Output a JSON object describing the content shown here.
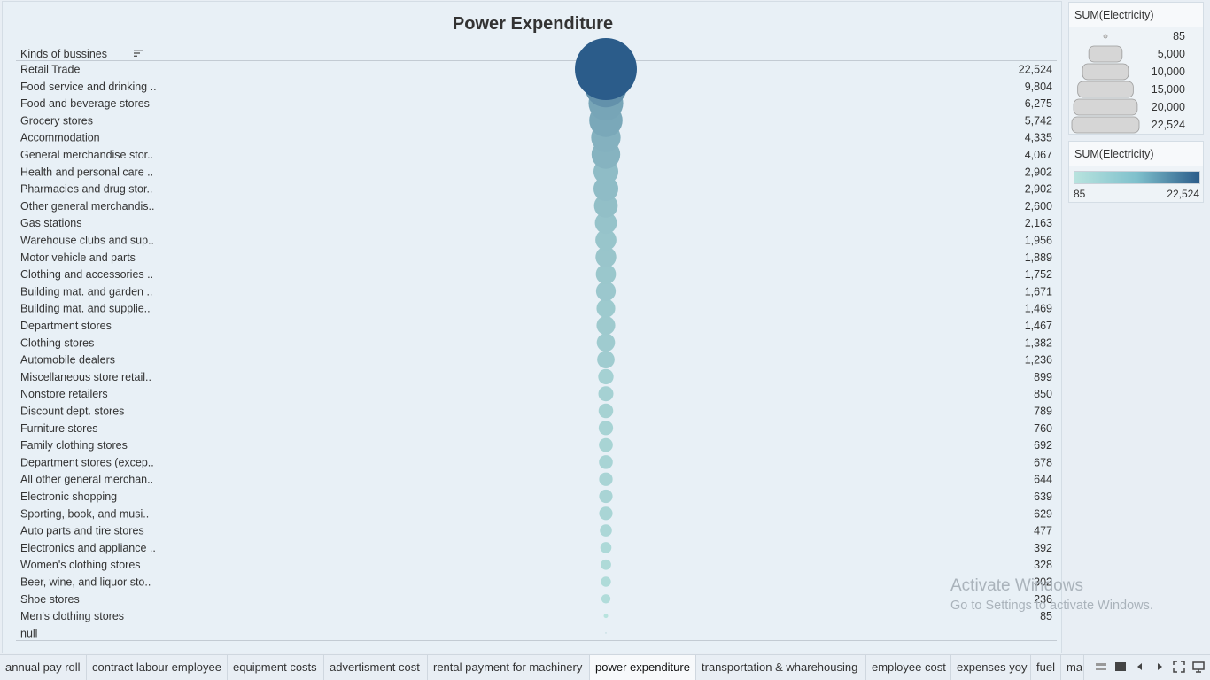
{
  "title": "Power Expenditure",
  "column_header": "Kinds of bussines",
  "chart_data": {
    "type": "scatter",
    "title": "Power Expenditure",
    "measure": "SUM(Electricity)",
    "categories": [
      "Retail Trade",
      "Food service and drinking ..",
      "Food and beverage stores",
      "Grocery stores",
      "Accommodation",
      "General merchandise stor..",
      "Health and personal care ..",
      "Pharmacies and drug stor..",
      "Other general merchandis..",
      "Gas stations",
      "Warehouse clubs and sup..",
      "Motor vehicle and parts",
      "Clothing and accessories ..",
      "Building mat. and garden ..",
      "Building mat. and supplie..",
      "Department stores",
      "Clothing stores",
      "Automobile dealers",
      "Miscellaneous store retail..",
      "Nonstore retailers",
      "Discount dept. stores",
      "Furniture stores",
      "Family clothing stores",
      "Department stores (excep..",
      "All other general merchan..",
      "Electronic shopping",
      "Sporting, book, and  musi..",
      "Auto parts and tire stores",
      "Electronics and appliance ..",
      "Women's clothing stores",
      "Beer, wine, and liquor sto..",
      "Shoe stores",
      "Men's clothing stores",
      "null"
    ],
    "values": [
      22524,
      9804,
      6275,
      5742,
      4335,
      4067,
      2902,
      2902,
      2600,
      2163,
      1956,
      1889,
      1752,
      1671,
      1469,
      1467,
      1382,
      1236,
      899,
      850,
      789,
      760,
      692,
      678,
      644,
      639,
      629,
      477,
      392,
      328,
      302,
      236,
      85,
      null
    ],
    "value_labels": [
      "22,524",
      "9,804",
      "6,275",
      "5,742",
      "4,335",
      "4,067",
      "2,902",
      "2,902",
      "2,600",
      "2,163",
      "1,956",
      "1,889",
      "1,752",
      "1,671",
      "1,469",
      "1,467",
      "1,382",
      "1,236",
      "899",
      "850",
      "789",
      "760",
      "692",
      "678",
      "644",
      "639",
      "629",
      "477",
      "392",
      "328",
      "302",
      "236",
      "85",
      ""
    ],
    "size_range": [
      85,
      22524
    ],
    "color_range": [
      85,
      22524
    ],
    "color_low": "#b8e3de",
    "color_high": "#2b5c8a",
    "grid": false
  },
  "size_legend": {
    "title": "SUM(Electricity)",
    "items": [
      {
        "value": 85,
        "label": "85"
      },
      {
        "value": 5000,
        "label": "5,000"
      },
      {
        "value": 10000,
        "label": "10,000"
      },
      {
        "value": 15000,
        "label": "15,000"
      },
      {
        "value": 20000,
        "label": "20,000"
      },
      {
        "value": 22524,
        "label": "22,524"
      }
    ]
  },
  "color_legend": {
    "title": "SUM(Electricity)",
    "min_label": "85",
    "max_label": "22,524"
  },
  "watermark": {
    "line1": "Activate Windows",
    "line2": "Go to Settings to activate Windows."
  },
  "tabs": [
    {
      "label": "annual pay roll",
      "active": false
    },
    {
      "label": "contract labour employee",
      "active": false
    },
    {
      "label": "equipment costs",
      "active": false
    },
    {
      "label": "advertisment cost",
      "active": false
    },
    {
      "label": "rental payment for machinery",
      "active": false
    },
    {
      "label": "power expenditure",
      "active": true
    },
    {
      "label": "transportation & wharehousing",
      "active": false
    },
    {
      "label": "employee cost",
      "active": false
    },
    {
      "label": "expenses yoy",
      "active": false
    },
    {
      "label": "fuel",
      "active": false
    },
    {
      "label": "ma",
      "active": false
    }
  ],
  "bottom_controls": [
    "grid-view-icon",
    "fullscreen-toggle-icon",
    "prev-sheet-icon",
    "next-sheet-icon",
    "fit-screen-icon",
    "presentation-icon"
  ]
}
